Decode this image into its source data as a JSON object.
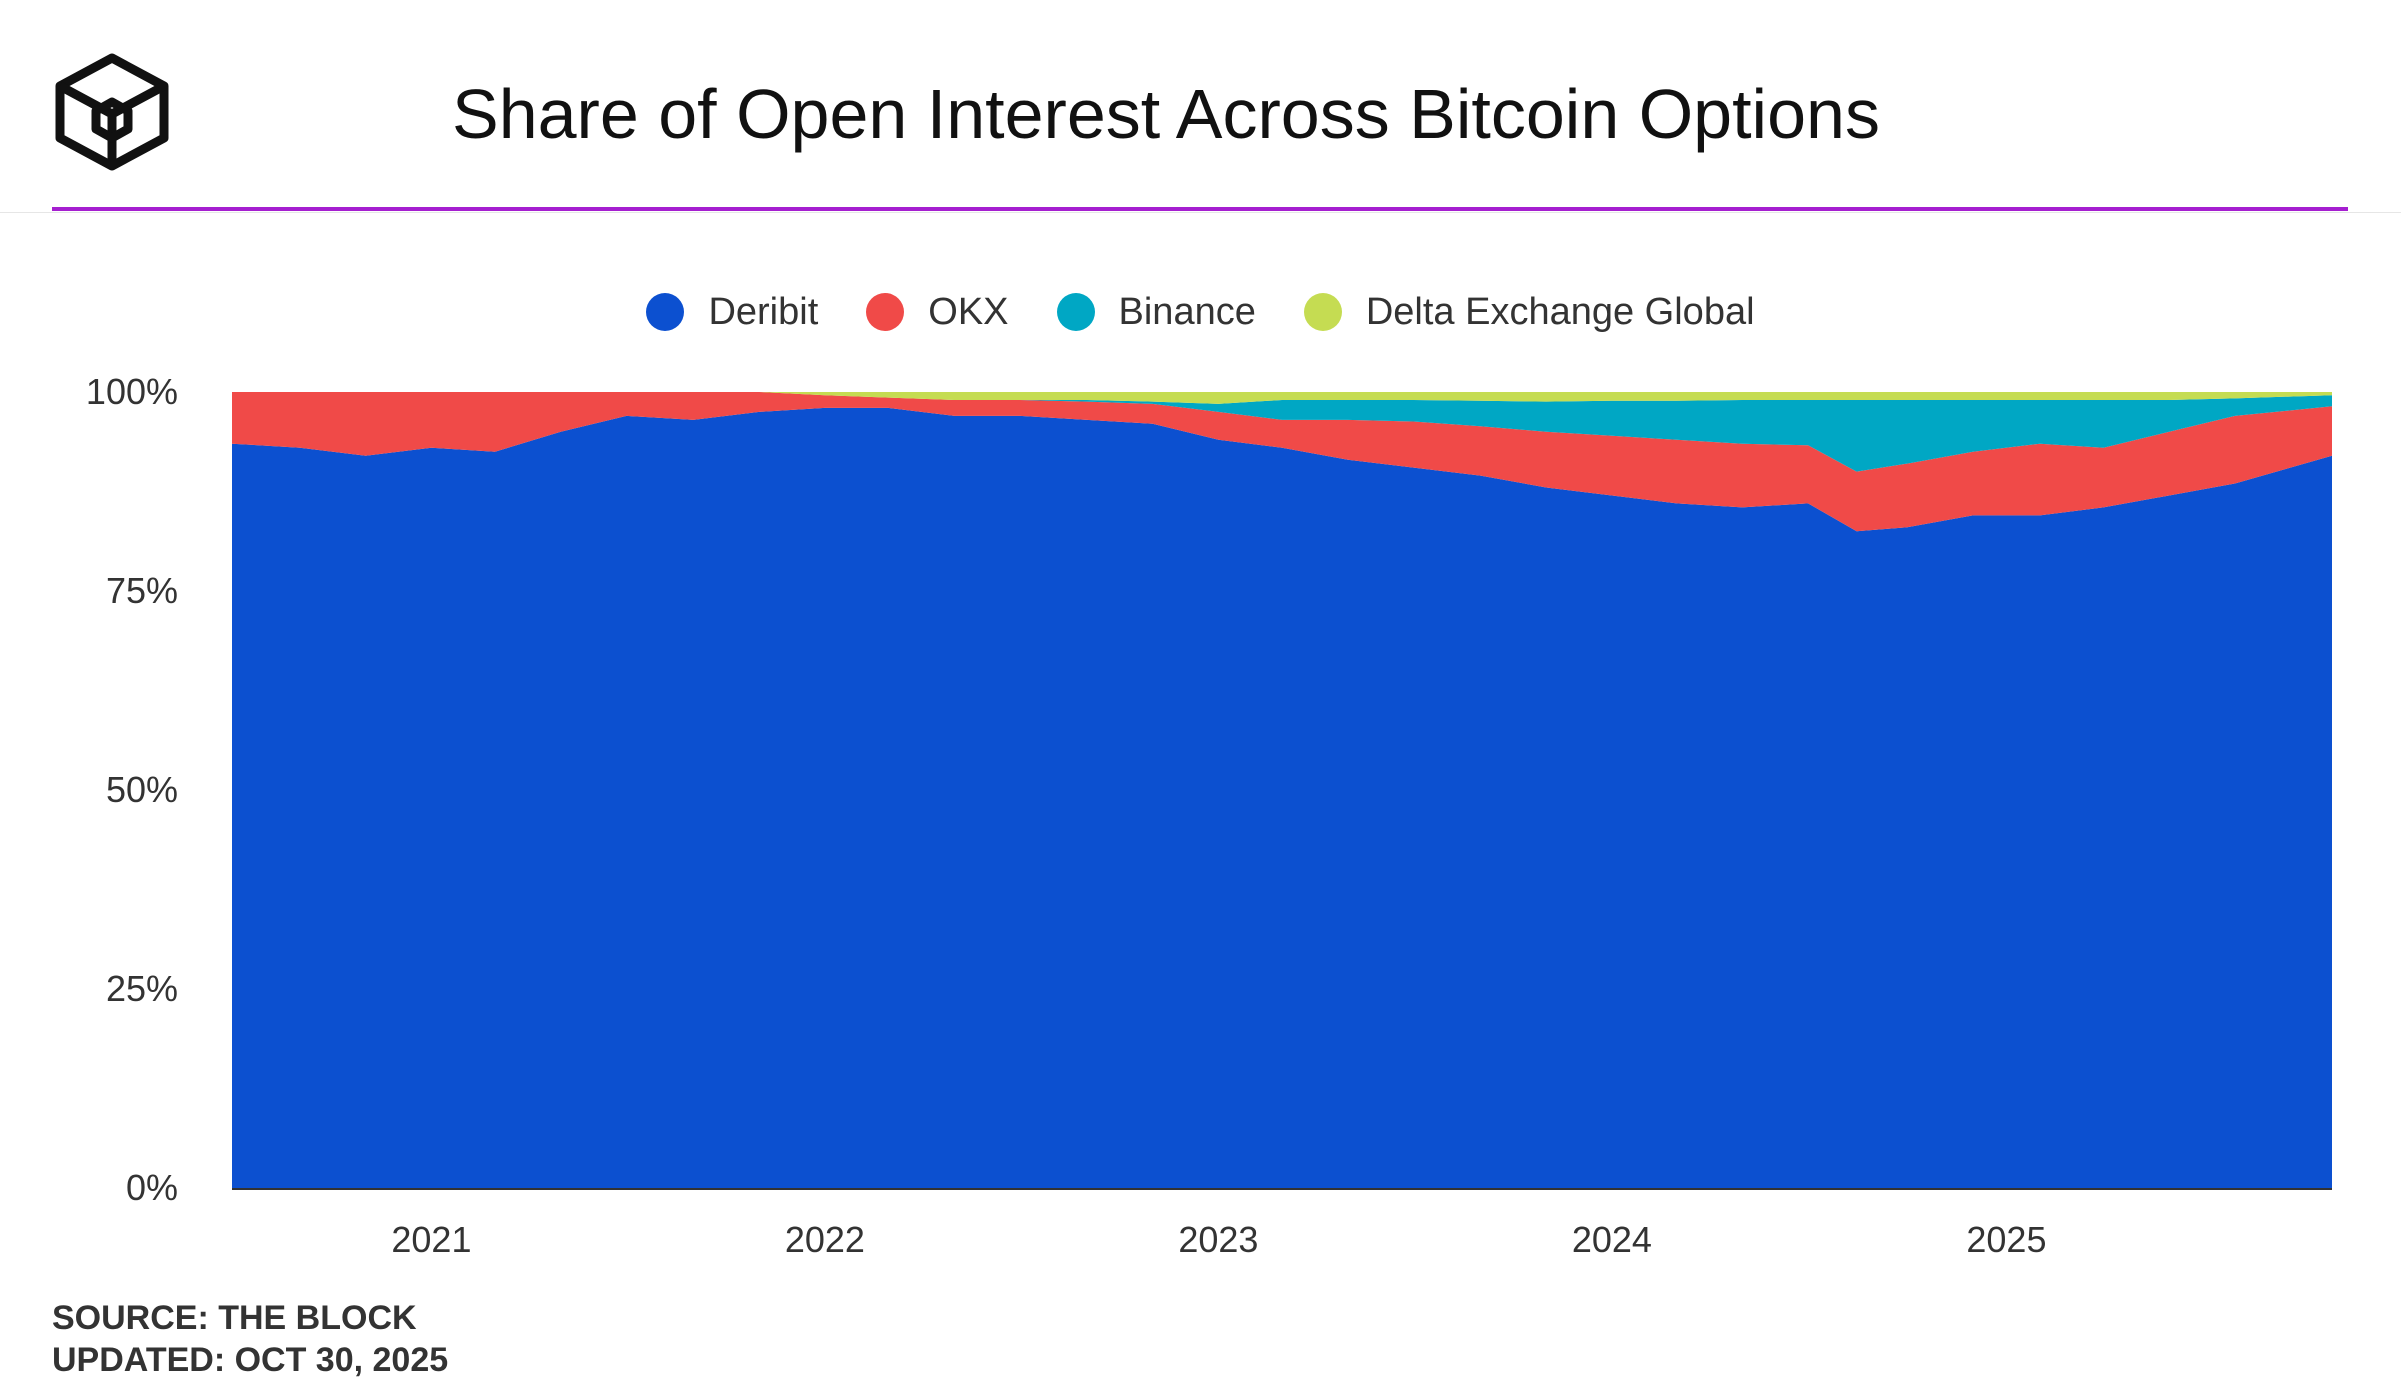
{
  "header": {
    "title": "Share of Open Interest Across Bitcoin Options",
    "logo_icon": "cube-logo-icon"
  },
  "footer": {
    "source": "SOURCE: THE BLOCK",
    "updated": "UPDATED: OCT 30, 2025"
  },
  "chart_data": {
    "type": "area",
    "stacked": true,
    "normalized_percent": true,
    "title": "Share of Open Interest Across Bitcoin Options",
    "xlabel": "",
    "ylabel": "",
    "ylim": [
      0,
      100
    ],
    "grid": false,
    "legend_position": "top-center",
    "y_ticks": [
      "0%",
      "25%",
      "50%",
      "75%",
      "100%"
    ],
    "x_ticks": [
      {
        "label": "2021",
        "date": "2021-01-01"
      },
      {
        "label": "2022",
        "date": "2022-01-01"
      },
      {
        "label": "2023",
        "date": "2023-01-01"
      },
      {
        "label": "2024",
        "date": "2024-01-01"
      },
      {
        "label": "2025",
        "date": "2025-01-01"
      }
    ],
    "x": [
      "2020-06-30",
      "2020-09-01",
      "2020-11-01",
      "2021-01-01",
      "2021-03-01",
      "2021-05-01",
      "2021-07-01",
      "2021-09-01",
      "2021-11-01",
      "2022-01-01",
      "2022-03-01",
      "2022-05-01",
      "2022-07-01",
      "2022-09-01",
      "2022-11-01",
      "2023-01-01",
      "2023-03-01",
      "2023-05-01",
      "2023-07-01",
      "2023-09-01",
      "2023-11-01",
      "2024-01-01",
      "2024-03-01",
      "2024-05-01",
      "2024-07-01",
      "2024-08-15",
      "2024-10-01",
      "2024-12-01",
      "2025-02-01",
      "2025-04-01",
      "2025-06-01",
      "2025-08-01",
      "2025-10-30"
    ],
    "series": [
      {
        "name": "Deribit",
        "color": "#0c50d0",
        "values": [
          93.5,
          93.0,
          92.0,
          93.0,
          92.5,
          95.0,
          97.0,
          96.5,
          97.5,
          98.0,
          98.0,
          97.0,
          97.0,
          96.5,
          96.0,
          94.0,
          93.0,
          91.5,
          90.5,
          89.5,
          88.0,
          87.0,
          86.0,
          85.5,
          86.0,
          82.5,
          83.0,
          84.5,
          84.5,
          85.5,
          87.0,
          88.5,
          92.0
        ]
      },
      {
        "name": "OKX",
        "color": "#f04a48",
        "values": [
          6.5,
          7.0,
          8.0,
          7.0,
          7.5,
          5.0,
          3.0,
          3.5,
          2.5,
          1.6,
          1.3,
          2.0,
          2.0,
          2.3,
          2.5,
          3.5,
          3.5,
          5.0,
          5.8,
          6.2,
          7.0,
          7.5,
          8.0,
          8.0,
          7.3,
          7.5,
          8.0,
          8.0,
          9.0,
          7.5,
          8.0,
          8.5,
          6.2
        ]
      },
      {
        "name": "Binance",
        "color": "#00a7c4",
        "values": [
          0,
          0,
          0,
          0,
          0,
          0,
          0,
          0,
          0,
          0,
          0,
          0,
          0,
          0.2,
          0.3,
          1.0,
          2.5,
          2.5,
          2.7,
          3.2,
          3.8,
          4.4,
          4.9,
          5.5,
          5.7,
          9.0,
          8.0,
          6.5,
          5.5,
          6.0,
          4.0,
          2.2,
          1.4
        ]
      },
      {
        "name": "Delta Exchange Global",
        "color": "#c5dc52",
        "values": [
          0,
          0,
          0,
          0,
          0,
          0,
          0,
          0,
          0,
          0.4,
          0.7,
          1.0,
          1.0,
          1.0,
          1.2,
          1.5,
          1.0,
          1.0,
          1.0,
          1.1,
          1.2,
          1.1,
          1.1,
          1.0,
          1.0,
          1.0,
          1.0,
          1.0,
          1.0,
          1.0,
          1.0,
          0.8,
          0.4
        ]
      }
    ]
  }
}
